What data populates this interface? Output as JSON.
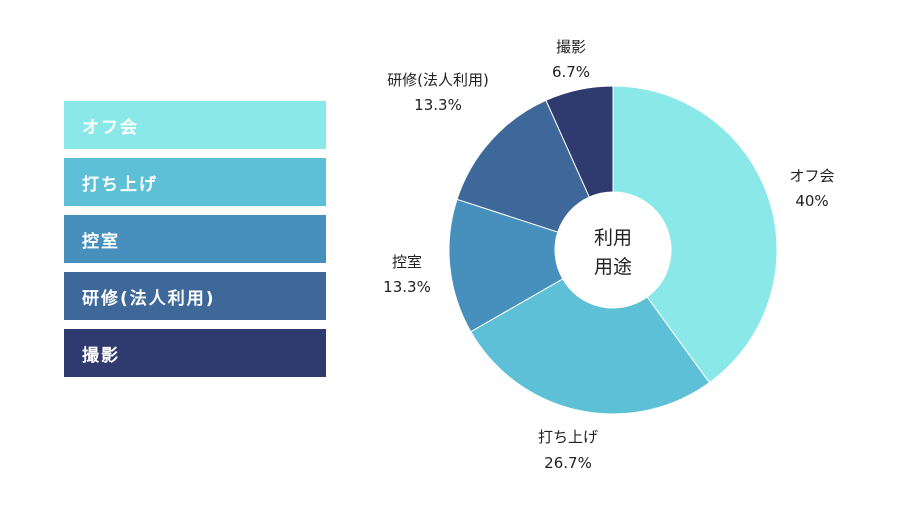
{
  "chart_data": {
    "type": "pie",
    "variant": "donut",
    "center_label": [
      "利用",
      "用途"
    ],
    "categories": [
      "オフ会",
      "打ち上げ",
      "控室",
      "研修(法人利用)",
      "撮影"
    ],
    "values": [
      40,
      26.7,
      13.3,
      13.3,
      6.7
    ],
    "value_labels": [
      "40%",
      "26.7%",
      "13.3%",
      "13.3%",
      "6.7%"
    ],
    "legend_labels": [
      "オフ会",
      "打ち上げ",
      "控室",
      "研修(法人利用)",
      "撮影"
    ],
    "colors": [
      "#8be8e8",
      "#5ec0d6",
      "#4790bd",
      "#3d6899",
      "#2f3a6e"
    ],
    "legend_position": "left"
  }
}
